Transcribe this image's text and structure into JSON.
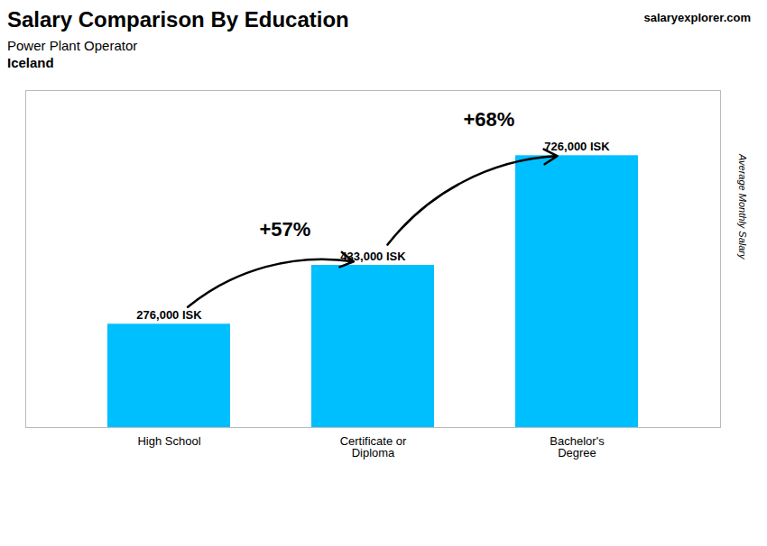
{
  "chart_data": {
    "type": "bar",
    "title": "Salary Comparison By Education",
    "subtitle": [
      "Power Plant Operator",
      "Iceland"
    ],
    "categories": [
      "High School",
      "Certificate or\nDiploma",
      "Bachelor's\nDegree"
    ],
    "values": [
      276000,
      433000,
      726000
    ],
    "value_labels": [
      "276,000 ISK",
      "433,000 ISK",
      "726,000 ISK"
    ],
    "data_labels": true,
    "color": "#00BFFF",
    "ylabel": "Average Monthly Salary",
    "ylim": [
      0,
      900000
    ],
    "tick_labels": "x",
    "grid": false,
    "annotations": [
      {
        "text": "+57%",
        "from": "High School",
        "to": "Certificate or\nDiploma"
      },
      {
        "text": "+68%",
        "from": "Certificate or\nDiploma",
        "to": "Bachelor's\nDegree"
      },
      {
        "text": "salaryexplorer.com"
      }
    ]
  }
}
